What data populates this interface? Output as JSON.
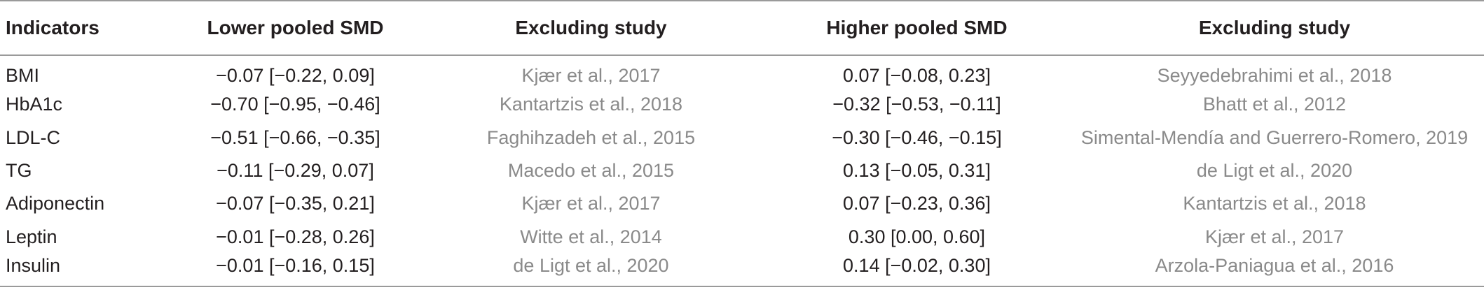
{
  "table": {
    "headers": [
      "Indicators",
      "Lower pooled SMD",
      "Excluding study",
      "Higher pooled SMD",
      "Excluding study"
    ],
    "rows": [
      [
        "BMI",
        "−0.07 [−0.22, 0.09]",
        "Kjær et al., 2017",
        "0.07 [−0.08, 0.23]",
        "Seyyedebrahimi et al., 2018"
      ],
      [
        "HbA1c",
        "−0.70 [−0.95, −0.46]",
        "Kantartzis et al., 2018",
        "−0.32 [−0.53, −0.11]",
        "Bhatt et al., 2012"
      ],
      [
        "LDL-C",
        "−0.51 [−0.66, −0.35]",
        "Faghihzadeh et al., 2015",
        "−0.30 [−0.46, −0.15]",
        "Simental-Mendía and Guerrero-Romero, 2019"
      ],
      [
        "TG",
        "−0.11 [−0.29, 0.07]",
        "Macedo et al., 2015",
        "0.13 [−0.05, 0.31]",
        "de Ligt et al., 2020"
      ],
      [
        "Adiponectin",
        "−0.07 [−0.35, 0.21]",
        "Kjær et al., 2017",
        "0.07 [−0.23, 0.36]",
        "Kantartzis et al., 2018"
      ],
      [
        "Leptin",
        "−0.01 [−0.28, 0.26]",
        "Witte et al., 2014",
        "0.30 [0.00, 0.60]",
        "Kjær et al., 2017"
      ],
      [
        "Insulin",
        "−0.01 [−0.16, 0.15]",
        "de Ligt et al., 2020",
        "0.14 [−0.02, 0.30]",
        "Arzola-Paniagua et al., 2016"
      ]
    ]
  }
}
